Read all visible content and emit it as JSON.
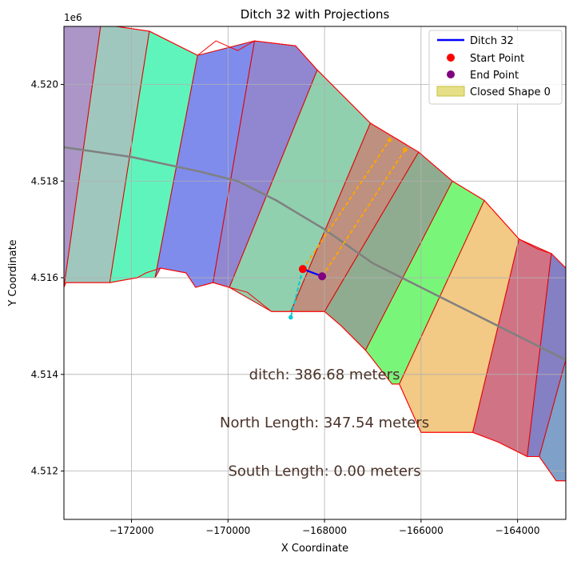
{
  "chart_data": {
    "type": "map",
    "title": "Ditch 32 with Projections",
    "xlabel": "X Coordinate",
    "ylabel": "Y Coordinate",
    "y_offset_label": "1e6",
    "xlim": [
      -173400,
      -163000
    ],
    "ylim": [
      4.511,
      4.5212
    ],
    "x_ticks": [
      -172000,
      -170000,
      -168000,
      -166000,
      -164000
    ],
    "x_tick_labels": [
      "−172000",
      "−170000",
      "−168000",
      "−166000",
      "−164000"
    ],
    "y_ticks": [
      4.512,
      4.514,
      4.516,
      4.518,
      4.52
    ],
    "y_tick_labels": [
      "4.512",
      "4.514",
      "4.516",
      "4.518",
      "4.520"
    ],
    "grid": true,
    "legend": {
      "placement": "top-right",
      "entries": [
        {
          "label": "Ditch 32",
          "kind": "line",
          "color": "#0000ff"
        },
        {
          "label": "Start Point",
          "kind": "marker",
          "color": "#ff0000"
        },
        {
          "label": "End Point",
          "kind": "marker",
          "color": "#800080"
        },
        {
          "label": "Closed Shape 0",
          "kind": "patch",
          "color": "#dcd660"
        }
      ]
    },
    "annotations": [
      {
        "text": "ditch: 386.68 meters",
        "x": -168000,
        "y": 4.514
      },
      {
        "text": "North Length: 347.54 meters",
        "x": -168000,
        "y": 4.513
      },
      {
        "text": "South Length: 0.00 meters",
        "x": -168000,
        "y": 4.512
      }
    ],
    "parcels": [
      {
        "color": "#9c84bd",
        "pts": [
          [
            -173400,
            4.5212
          ],
          [
            -172640,
            4.5212
          ],
          [
            -173400,
            4.5158
          ]
        ]
      },
      {
        "color": "#8ebdb2",
        "pts": [
          [
            -172640,
            4.5212
          ],
          [
            -172310,
            4.5212
          ],
          [
            -171630,
            4.5211
          ],
          [
            -172450,
            4.5159
          ],
          [
            -173360,
            4.5159
          ],
          [
            -173400,
            4.5158
          ]
        ]
      },
      {
        "color": "#44f2b2",
        "pts": [
          [
            -171630,
            4.5211
          ],
          [
            -170630,
            4.5206
          ],
          [
            -171510,
            4.516
          ],
          [
            -171880,
            4.516
          ],
          [
            -172450,
            4.5159
          ]
        ]
      },
      {
        "color": "#6878e8",
        "pts": [
          [
            -170630,
            4.5206
          ],
          [
            -169450,
            4.5209
          ],
          [
            -170310,
            4.5159
          ],
          [
            -170670,
            4.5158
          ],
          [
            -170870,
            4.5161
          ],
          [
            -171400,
            4.5162
          ],
          [
            -171510,
            4.516
          ]
        ]
      },
      {
        "color": "#7c72c8",
        "pts": [
          [
            -169450,
            4.5209
          ],
          [
            -168600,
            4.5208
          ],
          [
            -168150,
            4.5203
          ],
          [
            -169970,
            4.5158
          ],
          [
            -170310,
            4.5159
          ]
        ]
      },
      {
        "color": "#7cc8a0",
        "pts": [
          [
            -168150,
            4.5203
          ],
          [
            -167050,
            4.5192
          ],
          [
            -168700,
            4.5153
          ],
          [
            -169100,
            4.5153
          ],
          [
            -169970,
            4.5158
          ]
        ]
      },
      {
        "color": "#b27c6a",
        "pts": [
          [
            -167050,
            4.5192
          ],
          [
            -166050,
            4.5186
          ],
          [
            -168000,
            4.5153
          ],
          [
            -168700,
            4.5153
          ]
        ]
      },
      {
        "color": "#7c9e7c",
        "pts": [
          [
            -166050,
            4.5186
          ],
          [
            -165350,
            4.518
          ],
          [
            -167150,
            4.5145
          ],
          [
            -167650,
            4.515
          ],
          [
            -168000,
            4.5153
          ]
        ]
      },
      {
        "color": "#62f462",
        "pts": [
          [
            -165350,
            4.518
          ],
          [
            -164690,
            4.5176
          ],
          [
            -166450,
            4.5138
          ],
          [
            -166600,
            4.5138
          ],
          [
            -167150,
            4.5145
          ]
        ]
      },
      {
        "color": "#f0c070",
        "pts": [
          [
            -164690,
            4.5176
          ],
          [
            -163970,
            4.5168
          ],
          [
            -164930,
            4.5128
          ],
          [
            -165740,
            4.5128
          ],
          [
            -166000,
            4.5128
          ],
          [
            -166450,
            4.5138
          ]
        ]
      },
      {
        "color": "#c85a70",
        "pts": [
          [
            -163970,
            4.5168
          ],
          [
            -163300,
            4.5165
          ],
          [
            -163800,
            4.5123
          ],
          [
            -164400,
            4.5126
          ],
          [
            -164930,
            4.5128
          ]
        ]
      },
      {
        "color": "#7068b8",
        "pts": [
          [
            -163300,
            4.5165
          ],
          [
            -163000,
            4.5162
          ],
          [
            -163000,
            4.5143
          ],
          [
            -163550,
            4.5123
          ],
          [
            -163800,
            4.5123
          ]
        ]
      },
      {
        "color": "#6890c0",
        "pts": [
          [
            -163000,
            4.5143
          ],
          [
            -163000,
            4.5118
          ],
          [
            -163200,
            4.5118
          ],
          [
            -163550,
            4.5123
          ]
        ]
      }
    ],
    "boundary_top": [
      [
        -173400,
        4.5212
      ],
      [
        -172640,
        4.5212
      ],
      [
        -172310,
        4.5212
      ],
      [
        -171630,
        4.5211
      ],
      [
        -170630,
        4.5206
      ],
      [
        -170250,
        4.5209
      ],
      [
        -169800,
        4.5207
      ],
      [
        -169450,
        4.5209
      ],
      [
        -168600,
        4.5208
      ],
      [
        -168150,
        4.5203
      ],
      [
        -167050,
        4.5192
      ],
      [
        -166050,
        4.5186
      ],
      [
        -165350,
        4.518
      ],
      [
        -164690,
        4.5176
      ],
      [
        -163970,
        4.5168
      ],
      [
        -163600,
        4.5166
      ],
      [
        -163300,
        4.5165
      ],
      [
        -163000,
        4.5162
      ]
    ],
    "boundary_bottom": [
      [
        -173400,
        4.5158
      ],
      [
        -173360,
        4.5159
      ],
      [
        -172450,
        4.5159
      ],
      [
        -171880,
        4.516
      ],
      [
        -171700,
        4.5161
      ],
      [
        -171400,
        4.5162
      ],
      [
        -170870,
        4.5161
      ],
      [
        -170670,
        4.5158
      ],
      [
        -170310,
        4.5159
      ],
      [
        -169970,
        4.5158
      ],
      [
        -169600,
        4.5157
      ],
      [
        -169100,
        4.5153
      ],
      [
        -168700,
        4.5153
      ],
      [
        -168000,
        4.5153
      ],
      [
        -167650,
        4.515
      ],
      [
        -167150,
        4.5145
      ],
      [
        -166600,
        4.5138
      ],
      [
        -166450,
        4.5138
      ],
      [
        -166000,
        4.5128
      ],
      [
        -165740,
        4.5128
      ],
      [
        -164930,
        4.5128
      ],
      [
        -164400,
        4.5126
      ],
      [
        -163800,
        4.5123
      ],
      [
        -163550,
        4.5123
      ],
      [
        -163200,
        4.5118
      ],
      [
        -163000,
        4.5118
      ]
    ],
    "centerline": {
      "color": "#808080",
      "pts": [
        [
          -173400,
          4.5187
        ],
        [
          -172000,
          4.5185
        ],
        [
          -170600,
          4.5182
        ],
        [
          -169800,
          4.518
        ],
        [
          -169000,
          4.5176
        ],
        [
          -168000,
          4.517
        ],
        [
          -167000,
          4.5163
        ],
        [
          -166000,
          4.5158
        ],
        [
          -165000,
          4.5153
        ],
        [
          -164000,
          4.5148
        ],
        [
          -163000,
          4.5143
        ]
      ]
    },
    "ditch": {
      "color": "#0000ff",
      "start": [
        -168450,
        4.51618
      ],
      "end": [
        -168050,
        4.51603
      ]
    },
    "projections": [
      {
        "color": "#ffa500",
        "pts": [
          [
            -168450,
            4.51618
          ],
          [
            -166650,
            4.51885
          ]
        ]
      },
      {
        "color": "#ffa500",
        "pts": [
          [
            -168050,
            4.51603
          ],
          [
            -166330,
            4.51865
          ]
        ]
      },
      {
        "color": "#00ced1",
        "pts": [
          [
            -168450,
            4.51618
          ],
          [
            -168700,
            4.51518
          ]
        ]
      }
    ],
    "projection_markers": [
      {
        "color": "#ffa500",
        "x": -166650,
        "y": 4.51885
      },
      {
        "color": "#ffa500",
        "x": -166330,
        "y": 4.51865
      },
      {
        "color": "#00ced1",
        "x": -168700,
        "y": 4.51518
      }
    ]
  }
}
